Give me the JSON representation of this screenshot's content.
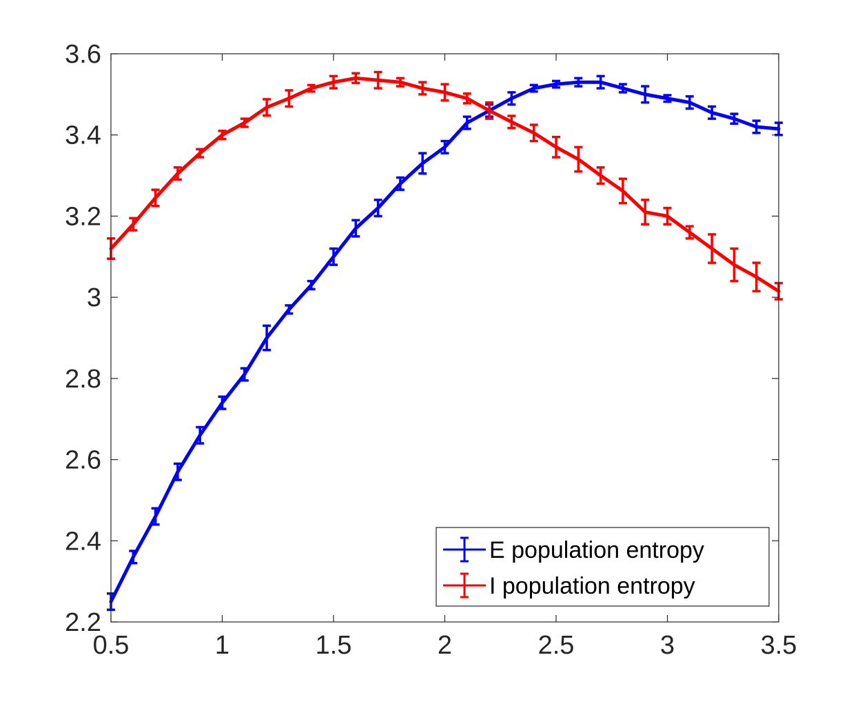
{
  "chart_data": {
    "type": "line",
    "title": "",
    "xlabel": "",
    "ylabel": "",
    "xlim": [
      0.5,
      3.5
    ],
    "ylim": [
      2.2,
      3.6
    ],
    "grid": false,
    "legend_position": "bottom-right",
    "x": [
      0.5,
      0.6,
      0.7,
      0.8,
      0.9,
      1.0,
      1.1,
      1.2,
      1.3,
      1.4,
      1.5,
      1.6,
      1.7,
      1.8,
      1.9,
      2.0,
      2.1,
      2.2,
      2.3,
      2.4,
      2.5,
      2.6,
      2.7,
      2.8,
      2.9,
      3.0,
      3.1,
      3.2,
      3.3,
      3.4,
      3.5
    ],
    "xticks": [
      0.5,
      1,
      1.5,
      2,
      2.5,
      3,
      3.5
    ],
    "xtick_labels": [
      "0.5",
      "1",
      "1.5",
      "2",
      "2.5",
      "3",
      "3.5"
    ],
    "yticks": [
      2.2,
      2.4,
      2.6,
      2.8,
      3.0,
      3.2,
      3.4,
      3.6
    ],
    "ytick_labels": [
      "2.2",
      "2.4",
      "2.6",
      "2.8",
      "3",
      "3.2",
      "3.4",
      "3.6"
    ],
    "series": [
      {
        "name": "E population entropy",
        "color": "#0000ff",
        "values": [
          2.25,
          2.36,
          2.46,
          2.57,
          2.66,
          2.74,
          2.81,
          2.9,
          2.97,
          3.03,
          3.1,
          3.17,
          3.22,
          3.28,
          3.33,
          3.37,
          3.43,
          3.46,
          3.49,
          3.515,
          3.525,
          3.53,
          3.53,
          3.515,
          3.5,
          3.49,
          3.48,
          3.455,
          3.44,
          3.42,
          3.415
        ],
        "errors": [
          0.02,
          0.015,
          0.02,
          0.02,
          0.02,
          0.015,
          0.015,
          0.03,
          0.01,
          0.01,
          0.02,
          0.02,
          0.02,
          0.015,
          0.025,
          0.015,
          0.015,
          0.015,
          0.015,
          0.008,
          0.008,
          0.01,
          0.015,
          0.01,
          0.02,
          0.008,
          0.015,
          0.015,
          0.012,
          0.015,
          0.015
        ]
      },
      {
        "name": "I population entropy",
        "color": "#ff0000",
        "values": [
          3.12,
          3.18,
          3.245,
          3.305,
          3.355,
          3.4,
          3.43,
          3.468,
          3.49,
          3.515,
          3.53,
          3.54,
          3.535,
          3.53,
          3.515,
          3.505,
          3.49,
          3.46,
          3.432,
          3.405,
          3.37,
          3.34,
          3.3,
          3.262,
          3.21,
          3.2,
          3.16,
          3.12,
          3.08,
          3.05,
          3.015
        ],
        "errors": [
          0.025,
          0.015,
          0.02,
          0.015,
          0.01,
          0.01,
          0.01,
          0.02,
          0.02,
          0.008,
          0.015,
          0.012,
          0.02,
          0.01,
          0.015,
          0.02,
          0.012,
          0.02,
          0.015,
          0.02,
          0.025,
          0.03,
          0.02,
          0.03,
          0.03,
          0.02,
          0.015,
          0.035,
          0.04,
          0.035,
          0.02
        ]
      }
    ]
  }
}
